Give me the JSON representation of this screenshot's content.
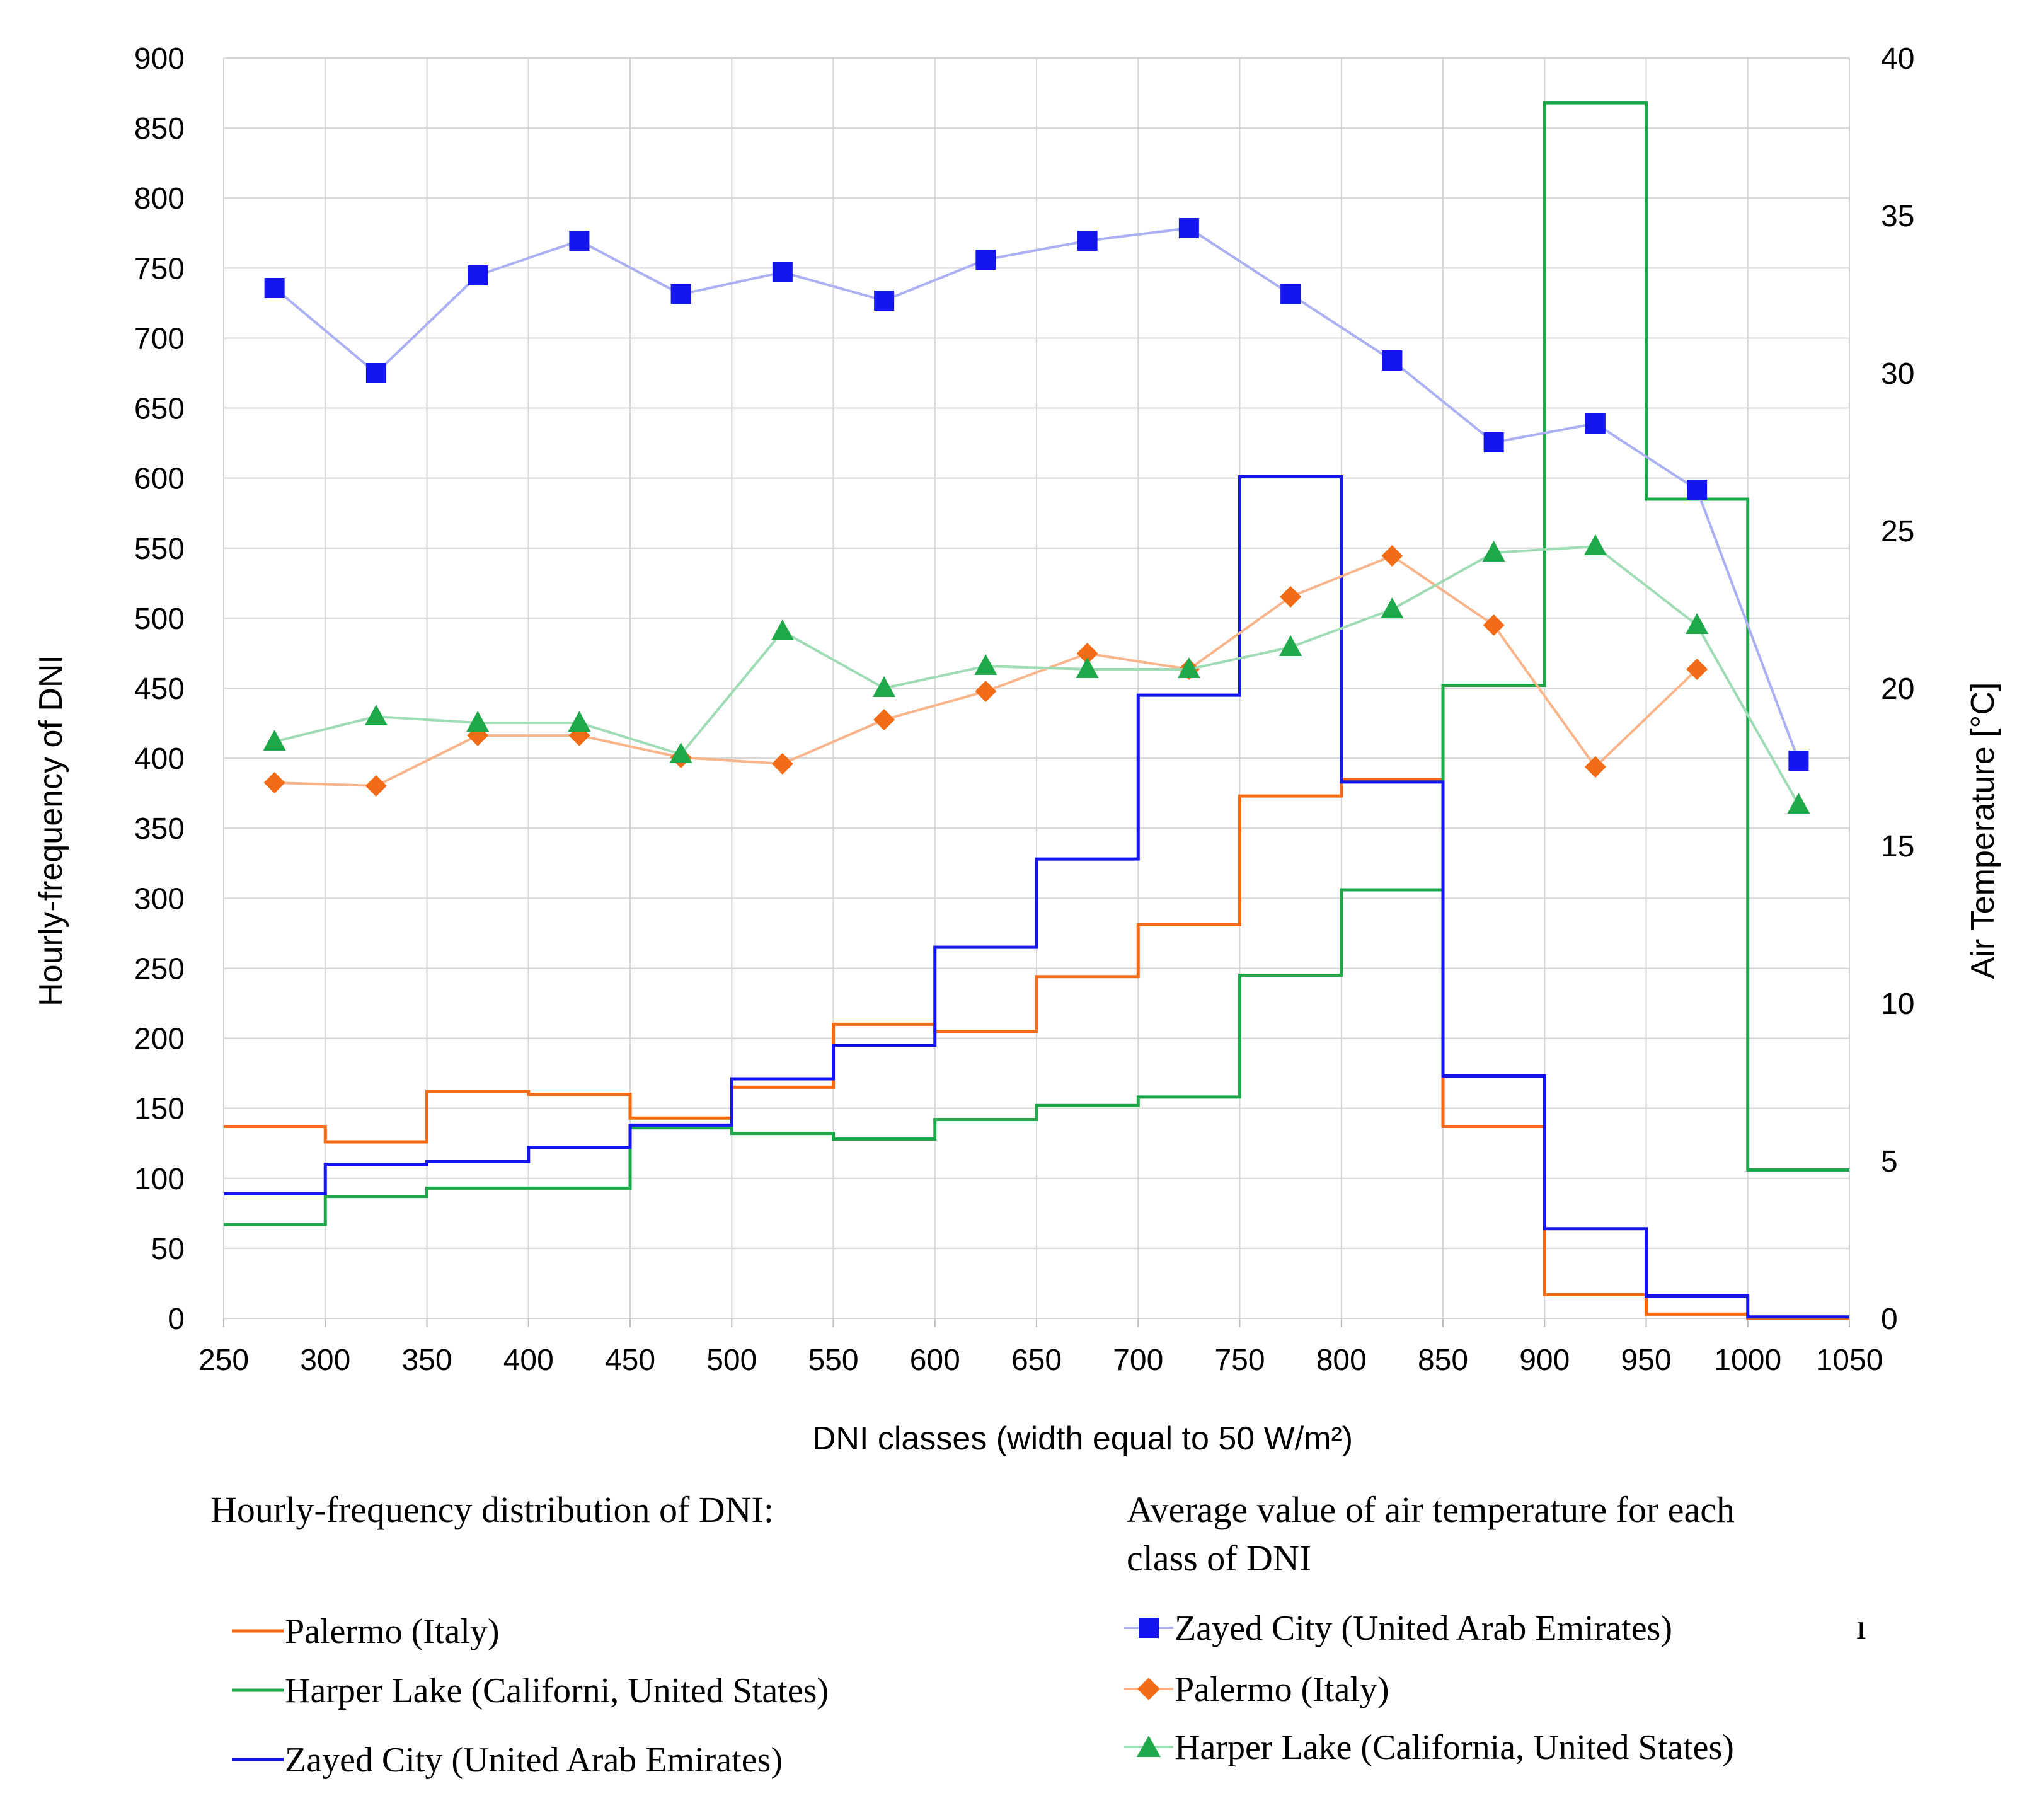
{
  "chart_data": {
    "type": "line",
    "x_bin_edges": [
      250,
      300,
      350,
      400,
      450,
      500,
      550,
      600,
      650,
      700,
      750,
      800,
      850,
      900,
      950,
      1000,
      1050
    ],
    "x_ticks": [
      "250",
      "300",
      "350",
      "400",
      "450",
      "500",
      "550",
      "600",
      "650",
      "700",
      "750",
      "800",
      "850",
      "900",
      "950",
      "1000",
      "1050"
    ],
    "xlabel": "DNI classes (width equal to 50 W/m²)",
    "xlim": [
      250,
      1050
    ],
    "y_left": {
      "label": "Hourly-frequency  of DNI",
      "lim": [
        0,
        900
      ],
      "ticks": [
        "0",
        "50",
        "100",
        "150",
        "200",
        "250",
        "300",
        "350",
        "400",
        "450",
        "500",
        "550",
        "600",
        "650",
        "700",
        "750",
        "800",
        "850",
        "900"
      ]
    },
    "y_right": {
      "label": "Air Temperature [°C]",
      "lim": [
        0,
        40
      ],
      "ticks": [
        "0",
        "5",
        "10",
        "15",
        "20",
        "25",
        "30",
        "35",
        "40"
      ]
    },
    "step_series": [
      {
        "name": "Palermo (Italy)",
        "color": "#f26b16",
        "values": [
          137,
          126,
          162,
          160,
          143,
          165,
          210,
          205,
          244,
          281,
          373,
          385,
          137,
          17,
          3,
          0
        ]
      },
      {
        "name": "Harper Lake (Californi, United States)",
        "color": "#1ea84a",
        "values": [
          67,
          87,
          93,
          93,
          136,
          132,
          128,
          142,
          152,
          158,
          245,
          306,
          452,
          868,
          585,
          106
        ]
      },
      {
        "name": "Zayed City (United Arab Emirates)",
        "color": "#1515f0",
        "values": [
          89,
          110,
          112,
          122,
          138,
          171,
          195,
          265,
          328,
          445,
          601,
          383,
          173,
          64,
          16,
          1
        ]
      }
    ],
    "line_series": [
      {
        "name": "Zayed City (United Arab Emirates)",
        "color": "#aab0f2",
        "marker_color": "#1515f0",
        "marker": "square",
        "x": [
          275,
          325,
          375,
          425,
          475,
          525,
          575,
          625,
          675,
          725,
          775,
          825,
          875,
          925,
          975,
          1025
        ],
        "values": [
          32.7,
          30.0,
          33.1,
          34.2,
          32.5,
          33.2,
          32.3,
          33.6,
          34.2,
          34.6,
          32.5,
          30.4,
          27.8,
          28.4,
          26.3,
          17.7
        ]
      },
      {
        "name": "Palermo (Italy)",
        "color": "#f8b58c",
        "marker_color": "#f26b16",
        "marker": "diamond",
        "x": [
          275,
          325,
          375,
          425,
          475,
          525,
          575,
          625,
          675,
          725,
          775,
          825,
          875,
          925,
          975
        ],
        "values": [
          17.0,
          16.9,
          18.5,
          18.5,
          17.8,
          17.6,
          19.0,
          19.9,
          21.1,
          20.6,
          22.9,
          24.2,
          22.0,
          17.5,
          20.6
        ]
      },
      {
        "name": "Harper Lake (California, United States)",
        "color": "#9fdbb4",
        "marker_color": "#1ea84a",
        "marker": "triangle",
        "x": [
          275,
          325,
          375,
          425,
          475,
          525,
          575,
          625,
          675,
          725,
          775,
          825,
          875,
          925,
          975,
          1025
        ],
        "values": [
          18.3,
          19.1,
          18.9,
          18.9,
          17.9,
          21.8,
          20.0,
          20.7,
          20.6,
          20.6,
          21.3,
          22.5,
          24.3,
          24.5,
          22.0,
          16.3
        ]
      }
    ]
  },
  "legend": {
    "left_heading": "Hourly-frequency distribution of DNI:",
    "right_heading_line1": "Average value of air temperature for each",
    "right_heading_line2": "class of DNI",
    "left_items": [
      "Palermo (Italy)",
      "Harper Lake (Californi, United States)",
      "Zayed City (United Arab Emirates)"
    ],
    "right_items": [
      "Zayed City (United Arab Emirates)",
      "Palermo (Italy)",
      "Harper Lake (California, United States)"
    ],
    "stray_mark": "ı"
  }
}
